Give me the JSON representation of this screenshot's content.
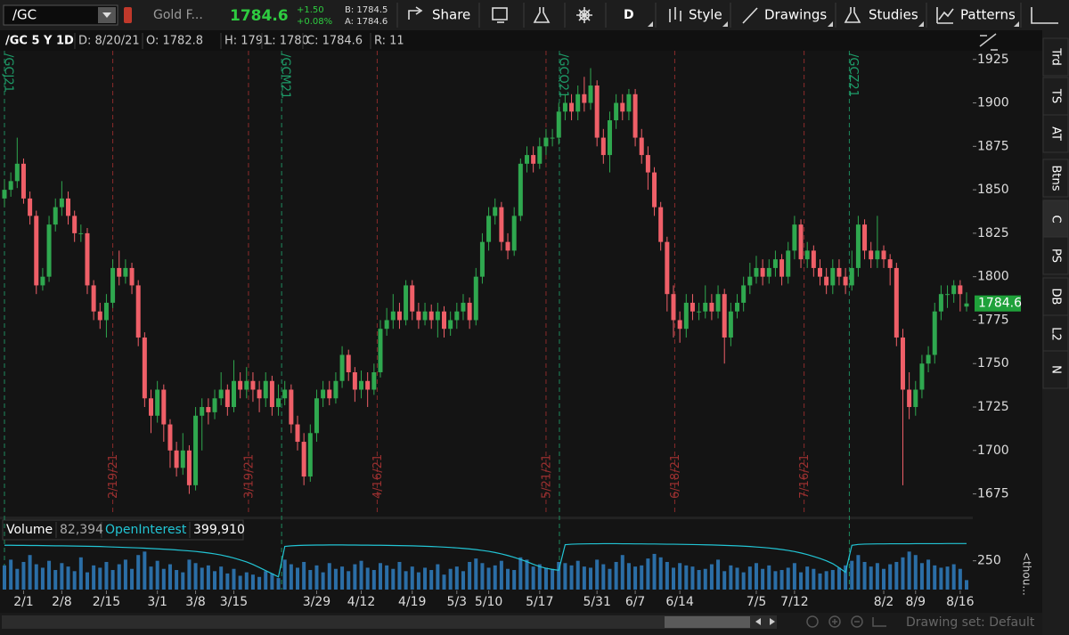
{
  "toolbar": {
    "symbol": "/GC",
    "description": "Gold F...",
    "last": "1784.6",
    "change": "+1.50",
    "change_pct": "+0.08%",
    "bid": "B: 1784.5",
    "ask": "A: 1784.6",
    "buttons": [
      "Share",
      "D",
      "Style",
      "Drawings",
      "Studies",
      "Patterns"
    ]
  },
  "chart_header": {
    "title": "/GC 5 Y 1D",
    "fields": [
      "D: 8/20/21",
      "O: 1782.8",
      "H: 1791",
      "L: 1780",
      "C: 1784.6",
      "R: 11"
    ]
  },
  "side_tabs": [
    "Trd",
    "TS",
    "AT",
    "Btns",
    "C",
    "PS",
    "DB",
    "L2",
    "N"
  ],
  "footer": {
    "drawing_set": "Drawing set: Default"
  },
  "chart_data": [
    {
      "type": "candlestick",
      "up_color": "#2fa84f",
      "down_color": "#ef5f68",
      "ylim": [
        1663,
        1930
      ],
      "yticks": [
        1675,
        1700,
        1725,
        1750,
        1775,
        1800,
        1825,
        1850,
        1875,
        1900,
        1925
      ],
      "xticks": [
        {
          "value": 3,
          "label": "2/1"
        },
        {
          "value": 9,
          "label": "2/8"
        },
        {
          "value": 16,
          "label": "2/15"
        },
        {
          "value": 24,
          "label": "3/1"
        },
        {
          "value": 30,
          "label": "3/8"
        },
        {
          "value": 36,
          "label": "3/15"
        },
        {
          "value": 49,
          "label": "3/29"
        },
        {
          "value": 56,
          "label": "4/12"
        },
        {
          "value": 64,
          "label": "4/19"
        },
        {
          "value": 71,
          "label": "5/3"
        },
        {
          "value": 76,
          "label": "5/10"
        },
        {
          "value": 84,
          "label": "5/17"
        },
        {
          "value": 93,
          "label": "5/31"
        },
        {
          "value": 99,
          "label": "6/7"
        },
        {
          "value": 106,
          "label": "6/14"
        },
        {
          "value": 118,
          "label": "7/5"
        },
        {
          "value": 124,
          "label": "7/12"
        },
        {
          "value": 138,
          "label": "8/2"
        },
        {
          "value": 143,
          "label": "8/9"
        },
        {
          "value": 150,
          "label": "8/16"
        }
      ],
      "expirations": [
        "2/19/21",
        "3/19/21",
        "4/16/21",
        "5/21/21",
        "6/18/21",
        "7/16/21"
      ],
      "expiration_x": [
        17,
        38.3,
        58.5,
        85,
        105.2,
        125.5
      ],
      "contracts": [
        "/GCJ21",
        "/GCM21",
        "/GCQ21",
        "/GCZ21"
      ],
      "contract_x": [
        0,
        43.5,
        87.1,
        132.6
      ],
      "open": [
        1845,
        1850,
        1855,
        1865,
        1845,
        1835,
        1795,
        1800,
        1830,
        1840,
        1845,
        1835,
        1825,
        1825,
        1795,
        1780,
        1775,
        1785,
        1805,
        1800,
        1805,
        1795,
        1765,
        1730,
        1720,
        1735,
        1715,
        1700,
        1690,
        1700,
        1680,
        1720,
        1725,
        1722,
        1730,
        1735,
        1725,
        1740,
        1735,
        1740,
        1735,
        1730,
        1740,
        1725,
        1730,
        1735,
        1715,
        1705,
        1685,
        1710,
        1730,
        1735,
        1730,
        1740,
        1755,
        1745,
        1735,
        1740,
        1735,
        1745,
        1770,
        1775,
        1780,
        1775,
        1795,
        1780,
        1775,
        1780,
        1775,
        1780,
        1770,
        1775,
        1780,
        1785,
        1775,
        1800,
        1820,
        1835,
        1840,
        1820,
        1815,
        1835,
        1865,
        1870,
        1865,
        1875,
        1880,
        1880,
        1895,
        1900,
        1895,
        1905,
        1900,
        1910,
        1880,
        1870,
        1890,
        1900,
        1895,
        1905,
        1880,
        1870,
        1860,
        1840,
        1820,
        1790,
        1775,
        1770,
        1785,
        1780,
        1780,
        1785,
        1780,
        1790,
        1765,
        1780,
        1785,
        1795,
        1800,
        1805,
        1800,
        1805,
        1810,
        1800,
        1815,
        1830,
        1810,
        1815,
        1805,
        1800,
        1795,
        1805,
        1800,
        1795,
        1805,
        1830,
        1815,
        1810,
        1815,
        1810,
        1805,
        1765,
        1735,
        1725,
        1735,
        1750,
        1755,
        1780,
        1790,
        1790,
        1795,
        1782.8
      ],
      "high": [
        1856,
        1860,
        1880,
        1868,
        1849,
        1838,
        1805,
        1835,
        1845,
        1855,
        1849,
        1838,
        1830,
        1828,
        1798,
        1785,
        1790,
        1810,
        1815,
        1810,
        1808,
        1798,
        1768,
        1735,
        1740,
        1738,
        1718,
        1705,
        1710,
        1703,
        1725,
        1730,
        1730,
        1735,
        1745,
        1738,
        1752,
        1745,
        1748,
        1745,
        1740,
        1745,
        1743,
        1738,
        1740,
        1738,
        1720,
        1710,
        1715,
        1735,
        1740,
        1740,
        1745,
        1760,
        1758,
        1748,
        1746,
        1745,
        1750,
        1775,
        1782,
        1790,
        1785,
        1798,
        1798,
        1785,
        1785,
        1784,
        1785,
        1783,
        1780,
        1785,
        1790,
        1788,
        1805,
        1825,
        1840,
        1845,
        1843,
        1825,
        1840,
        1868,
        1875,
        1875,
        1880,
        1885,
        1885,
        1900,
        1905,
        1905,
        1910,
        1915,
        1920,
        1913,
        1885,
        1895,
        1905,
        1905,
        1908,
        1908,
        1885,
        1875,
        1863,
        1843,
        1823,
        1795,
        1780,
        1790,
        1790,
        1785,
        1795,
        1790,
        1795,
        1793,
        1785,
        1790,
        1800,
        1808,
        1812,
        1810,
        1810,
        1815,
        1813,
        1820,
        1835,
        1833,
        1820,
        1818,
        1810,
        1805,
        1810,
        1810,
        1805,
        1815,
        1835,
        1833,
        1820,
        1835,
        1818,
        1813,
        1808,
        1770,
        1745,
        1740,
        1755,
        1760,
        1785,
        1795,
        1795,
        1798,
        1798,
        1791
      ],
      "low": [
        1840,
        1846,
        1851,
        1842,
        1830,
        1790,
        1792,
        1797,
        1826,
        1835,
        1830,
        1820,
        1820,
        1790,
        1775,
        1770,
        1765,
        1782,
        1795,
        1796,
        1790,
        1760,
        1725,
        1710,
        1716,
        1705,
        1690,
        1685,
        1686,
        1675,
        1677,
        1700,
        1715,
        1718,
        1726,
        1720,
        1722,
        1730,
        1730,
        1728,
        1722,
        1725,
        1720,
        1720,
        1726,
        1710,
        1700,
        1680,
        1682,
        1705,
        1725,
        1726,
        1727,
        1736,
        1740,
        1728,
        1730,
        1725,
        1732,
        1742,
        1766,
        1770,
        1770,
        1772,
        1775,
        1770,
        1772,
        1770,
        1765,
        1765,
        1766,
        1770,
        1775,
        1770,
        1772,
        1796,
        1815,
        1830,
        1815,
        1810,
        1812,
        1832,
        1860,
        1860,
        1862,
        1870,
        1875,
        1876,
        1890,
        1890,
        1890,
        1895,
        1896,
        1875,
        1865,
        1860,
        1885,
        1890,
        1890,
        1875,
        1865,
        1850,
        1835,
        1815,
        1780,
        1765,
        1762,
        1765,
        1775,
        1775,
        1776,
        1775,
        1776,
        1750,
        1760,
        1776,
        1780,
        1790,
        1796,
        1795,
        1796,
        1800,
        1795,
        1796,
        1810,
        1805,
        1805,
        1800,
        1795,
        1790,
        1790,
        1795,
        1790,
        1792,
        1800,
        1810,
        1805,
        1805,
        1805,
        1795,
        1760,
        1680,
        1718,
        1720,
        1730,
        1745,
        1750,
        1775,
        1782,
        1785,
        1780,
        1780
      ],
      "close": [
        1850,
        1855,
        1865,
        1845,
        1835,
        1795,
        1800,
        1830,
        1840,
        1845,
        1835,
        1825,
        1825,
        1795,
        1780,
        1775,
        1785,
        1805,
        1800,
        1805,
        1795,
        1765,
        1730,
        1720,
        1735,
        1715,
        1700,
        1690,
        1700,
        1680,
        1720,
        1725,
        1722,
        1730,
        1735,
        1725,
        1740,
        1735,
        1740,
        1735,
        1730,
        1740,
        1725,
        1730,
        1735,
        1715,
        1705,
        1685,
        1710,
        1730,
        1735,
        1730,
        1740,
        1755,
        1745,
        1735,
        1740,
        1735,
        1745,
        1770,
        1775,
        1780,
        1775,
        1795,
        1780,
        1775,
        1780,
        1775,
        1780,
        1770,
        1775,
        1780,
        1785,
        1775,
        1800,
        1820,
        1835,
        1840,
        1820,
        1815,
        1835,
        1865,
        1870,
        1865,
        1875,
        1880,
        1880,
        1895,
        1900,
        1895,
        1905,
        1900,
        1910,
        1880,
        1870,
        1890,
        1900,
        1895,
        1905,
        1880,
        1870,
        1860,
        1840,
        1820,
        1790,
        1775,
        1770,
        1785,
        1780,
        1780,
        1785,
        1780,
        1790,
        1765,
        1780,
        1785,
        1795,
        1800,
        1805,
        1800,
        1805,
        1810,
        1800,
        1815,
        1830,
        1810,
        1815,
        1805,
        1800,
        1795,
        1805,
        1800,
        1795,
        1805,
        1830,
        1815,
        1810,
        1815,
        1810,
        1805,
        1765,
        1735,
        1725,
        1735,
        1750,
        1755,
        1780,
        1790,
        1790,
        1795,
        1790,
        1784.6
      ]
    },
    {
      "type": "bar",
      "ylabel": "<thou...",
      "ylim": [
        0,
        410
      ],
      "yticks": [
        250
      ],
      "legend_values": [
        "82,394",
        "399,910"
      ],
      "series": [
        {
          "name": "Volume",
          "color": "#2b6ea6",
          "values": [
            210,
            260,
            180,
            240,
            300,
            220,
            190,
            250,
            170,
            230,
            200,
            160,
            280,
            150,
            210,
            190,
            240,
            170,
            220,
            260,
            180,
            300,
            330,
            200,
            250,
            180,
            220,
            170,
            150,
            260,
            230,
            190,
            210,
            160,
            200,
            140,
            180,
            120,
            150,
            130,
            110,
            160,
            140,
            100,
            260,
            220,
            190,
            240,
            170,
            210,
            150,
            230,
            180,
            200,
            160,
            220,
            250,
            190,
            170,
            230,
            210,
            180,
            240,
            160,
            200,
            150,
            190,
            170,
            220,
            130,
            180,
            200,
            160,
            240,
            270,
            230,
            190,
            210,
            250,
            180,
            170,
            280,
            260,
            200,
            220,
            190,
            180,
            240,
            230,
            210,
            250,
            200,
            190,
            260,
            220,
            180,
            240,
            300,
            230,
            200,
            210,
            270,
            310,
            280,
            240,
            190,
            230,
            210,
            200,
            170,
            180,
            220,
            260,
            160,
            210,
            190,
            150,
            200,
            230,
            180,
            210,
            160,
            170,
            190,
            230,
            150,
            200,
            180,
            140,
            160,
            170,
            190,
            210,
            250,
            300,
            240,
            200,
            230,
            180,
            220,
            240,
            280,
            330,
            300,
            230,
            260,
            210,
            190,
            200,
            220,
            180,
            82.394
          ]
        },
        {
          "name": "OpenInterest",
          "color": "#22c4d4",
          "values": [
            385,
            385,
            384,
            384,
            383,
            383,
            382,
            381,
            380,
            380,
            379,
            378,
            377,
            376,
            375,
            374,
            372,
            370,
            368,
            366,
            364,
            362,
            360,
            357,
            354,
            351,
            348,
            344,
            340,
            336,
            331,
            325,
            318,
            310,
            300,
            288,
            274,
            258,
            240,
            218,
            192,
            165,
            138,
            110,
            375,
            380,
            383,
            385,
            386,
            387,
            387,
            388,
            388,
            388,
            387,
            387,
            386,
            386,
            385,
            385,
            384,
            383,
            382,
            381,
            380,
            378,
            376,
            374,
            372,
            369,
            366,
            362,
            358,
            353,
            347,
            340,
            332,
            322,
            310,
            296,
            280,
            262,
            242,
            220,
            200,
            185,
            175,
            168,
            390,
            394,
            396,
            397,
            398,
            398,
            399,
            399,
            399,
            398,
            398,
            397,
            397,
            396,
            396,
            395,
            394,
            394,
            393,
            392,
            391,
            390,
            389,
            388,
            386,
            384,
            382,
            380,
            377,
            374,
            370,
            366,
            361,
            355,
            348,
            340,
            330,
            318,
            304,
            288,
            270,
            250,
            225,
            190,
            150,
            385,
            392,
            395,
            396,
            397,
            397,
            398,
            398,
            398,
            398,
            399,
            399,
            399,
            399,
            399,
            400,
            400,
            400,
            399.91
          ]
        }
      ]
    }
  ]
}
